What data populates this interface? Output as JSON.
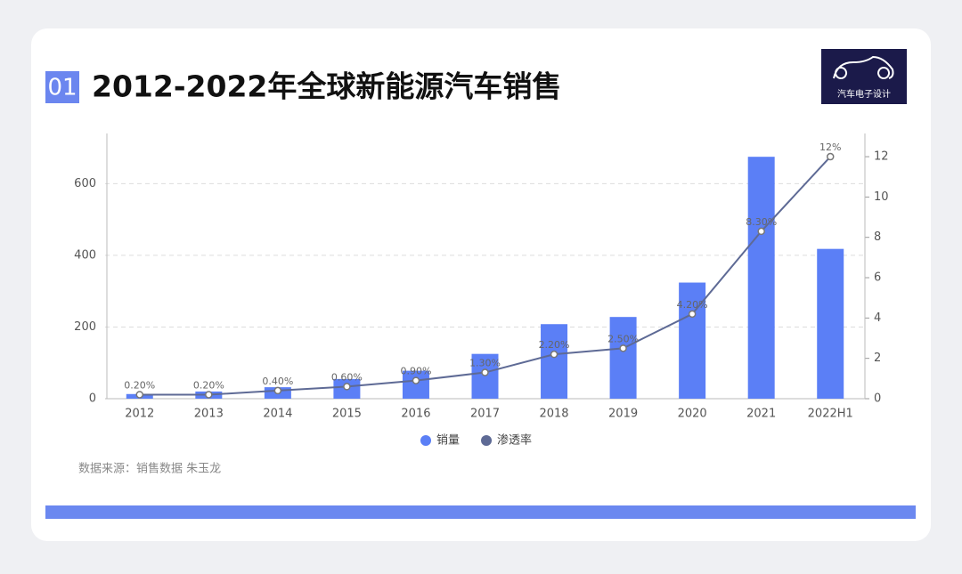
{
  "header": {
    "badge": "01",
    "logo_text": "汽车电子设计"
  },
  "chart_data": {
    "type": "bar",
    "title": "2012-2022年全球新能源汽车销售",
    "categories": [
      "2012",
      "2013",
      "2014",
      "2015",
      "2016",
      "2017",
      "2018",
      "2019",
      "2020",
      "2021",
      "2022H1"
    ],
    "series": [
      {
        "name": "销量",
        "color": "#5b7ff6",
        "values": [
          13,
          20,
          32,
          55,
          78,
          125,
          208,
          228,
          324,
          675,
          418
        ]
      },
      {
        "name": "渗透率",
        "color": "#5e6a95",
        "type": "line",
        "axis": "y2",
        "values": [
          0.2,
          0.2,
          0.4,
          0.6,
          0.9,
          1.3,
          2.2,
          2.5,
          4.2,
          8.3,
          12
        ],
        "value_labels": [
          "0.20%",
          "0.20%",
          "0.40%",
          "0.60%",
          "0.90%",
          "1.30%",
          "2.20%",
          "2.50%",
          "4.20%",
          "8.30%",
          "12%"
        ]
      }
    ],
    "ylim": [
      0,
      740
    ],
    "yticks": [
      0,
      200,
      400,
      600
    ],
    "y2lim": [
      0,
      13.15
    ],
    "y2ticks": [
      0,
      2,
      4,
      6,
      8,
      10,
      12
    ],
    "grid": true,
    "source": "数据来源：销售数据 朱玉龙"
  }
}
